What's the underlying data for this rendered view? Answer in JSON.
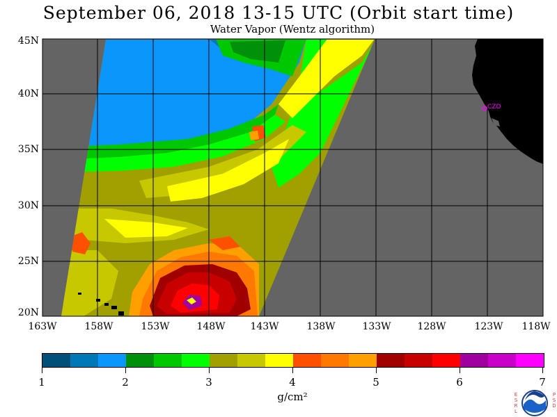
{
  "title": "September 06, 2018  13-15 UTC  (Orbit start time)",
  "subtitle": "Water Vapor (Wentz algorithm)",
  "map": {
    "lat_labels": [
      "45N",
      "40N",
      "35N",
      "30N",
      "25N",
      "20N"
    ],
    "lon_labels": [
      "163W",
      "158W",
      "153W",
      "148W",
      "143W",
      "138W",
      "133W",
      "128W",
      "123W",
      "118W"
    ],
    "station_label": "CZD",
    "colors": {
      "background": "#646464",
      "land": "#000000",
      "station": "#ff00ff"
    }
  },
  "colorbar": {
    "colors": [
      "#00507a",
      "#0078b8",
      "#0a96fa",
      "#00900a",
      "#00c800",
      "#00ff00",
      "#a0a000",
      "#c8c800",
      "#ffff00",
      "#ff5000",
      "#ff7800",
      "#ffa000",
      "#a00000",
      "#c80000",
      "#ff0000",
      "#a000a0",
      "#c800c8",
      "#ff00ff"
    ],
    "tick_labels": [
      "1",
      "2",
      "3",
      "4",
      "5",
      "6",
      "7"
    ],
    "units": "g/cm²"
  },
  "logo": {
    "name": "NOAA",
    "left_text": "ESRL",
    "right_text": "PSD"
  }
}
